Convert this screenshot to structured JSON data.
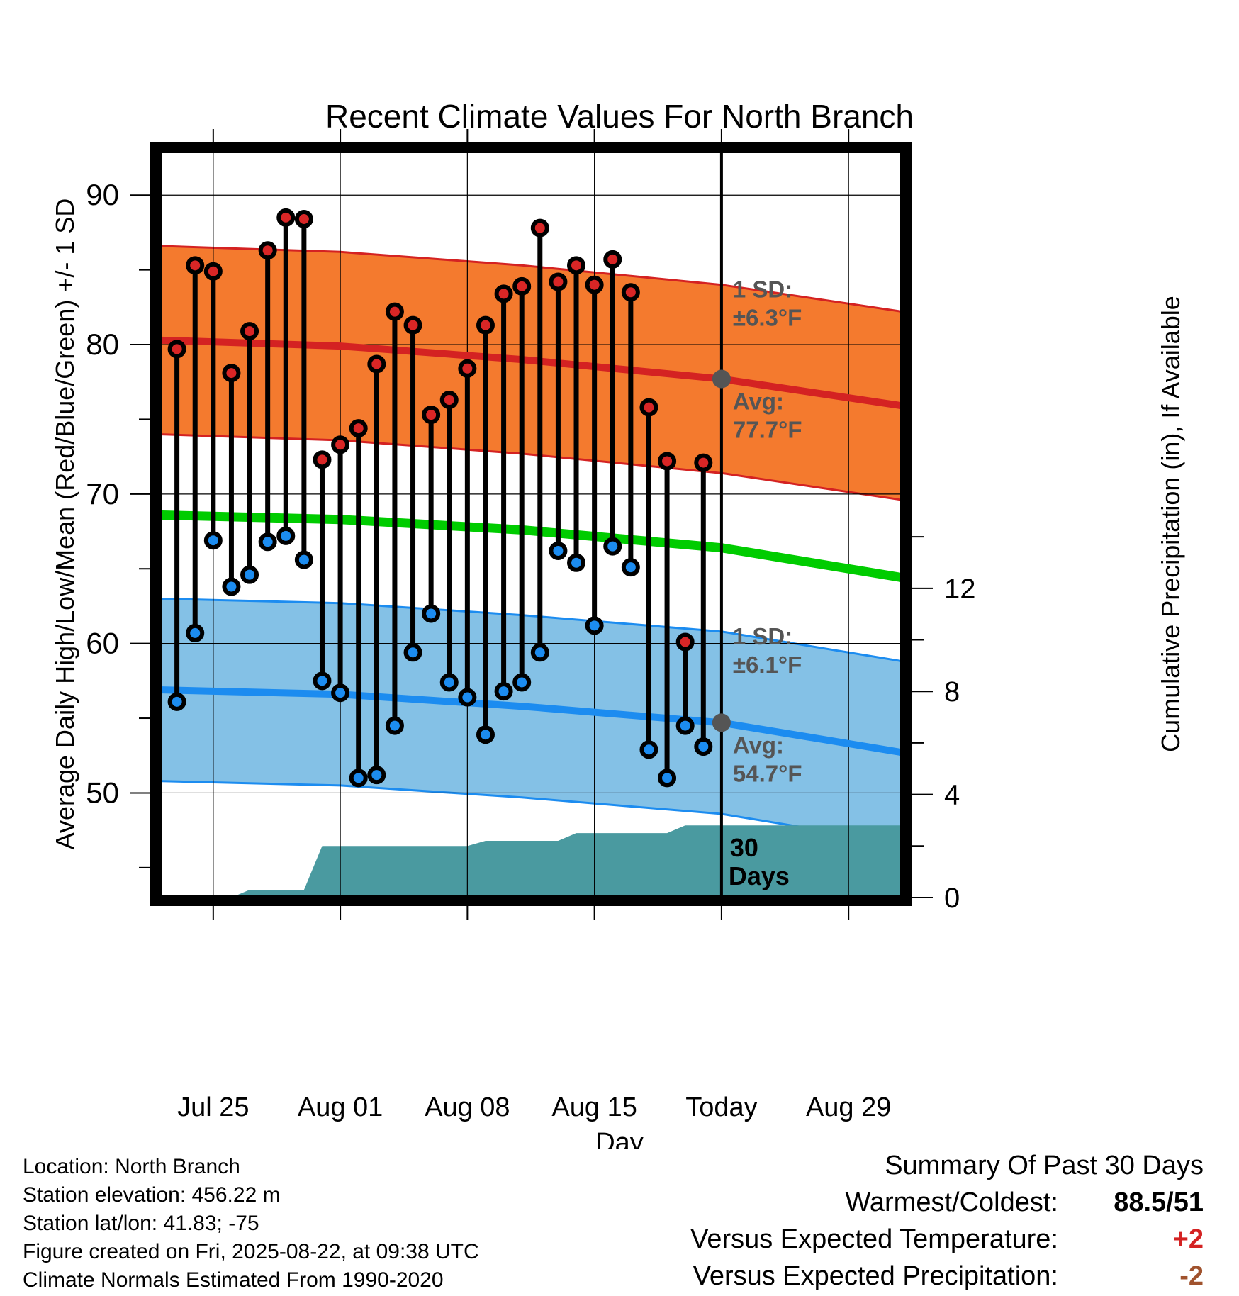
{
  "chart_data": {
    "type": "line",
    "title": "Recent Climate Values For North Branch",
    "xlabel": "Day",
    "ylabel": "Average Daily High/Low/Mean (Red/Blue/Green) +/- 1 SD",
    "ylabel_right": "Cumulative Precipitation (in), If Available",
    "x_ticks": [
      "Jul 25",
      "Aug 01",
      "Aug 08",
      "Aug 15",
      "Today",
      "Aug 29"
    ],
    "x_tick_days": [
      3,
      10,
      17,
      24,
      31,
      38
    ],
    "x_range_days": [
      0,
      41
    ],
    "ylim": [
      43,
      93
    ],
    "y_ticks": [
      50,
      60,
      70,
      80,
      90
    ],
    "y2lim": [
      0,
      29
    ],
    "y2_ticks": [
      0,
      4,
      8,
      12
    ],
    "grid": true,
    "today_day": 31,
    "daily": {
      "days": [
        1,
        2,
        3,
        4,
        5,
        6,
        7,
        8,
        9,
        10,
        11,
        12,
        13,
        14,
        15,
        16,
        17,
        18,
        19,
        20,
        21,
        22,
        23,
        24,
        25,
        26,
        27,
        28,
        29,
        30
      ],
      "high": [
        79.7,
        85.3,
        84.9,
        78.1,
        80.9,
        86.3,
        88.5,
        88.4,
        72.3,
        73.3,
        74.4,
        78.7,
        82.2,
        81.3,
        75.3,
        76.3,
        78.4,
        81.3,
        83.4,
        83.9,
        87.8,
        84.2,
        85.3,
        84.0,
        85.7,
        83.5,
        75.8,
        72.2,
        60.1,
        72.1
      ],
      "low": [
        56.1,
        60.7,
        66.9,
        63.8,
        64.6,
        66.8,
        67.2,
        65.6,
        57.5,
        56.7,
        51.0,
        51.2,
        54.5,
        59.4,
        62.0,
        57.4,
        56.4,
        53.9,
        56.8,
        57.4,
        59.4,
        66.2,
        65.4,
        61.2,
        66.5,
        65.1,
        52.9,
        51.0,
        54.5,
        53.1
      ]
    },
    "normals": {
      "days": [
        0,
        10,
        20,
        31,
        41
      ],
      "avg_high": [
        80.3,
        79.9,
        79.0,
        77.7,
        75.9
      ],
      "sd_high": 6.3,
      "avg_low": [
        56.9,
        56.6,
        55.8,
        54.7,
        52.7
      ],
      "sd_low": 6.1,
      "avg_mean": [
        68.6,
        68.3,
        67.6,
        66.4,
        64.4
      ]
    },
    "precipitation_cumulative": {
      "days": [
        0,
        4,
        5,
        8,
        9,
        17,
        18,
        22,
        23,
        28,
        29,
        41
      ],
      "values": [
        0,
        0,
        0.3,
        0.3,
        2.0,
        2.0,
        2.2,
        2.2,
        2.5,
        2.5,
        2.8,
        2.8
      ]
    },
    "annotations": {
      "high_sd_label": "1 SD:",
      "high_sd_value": "±6.3°F",
      "high_avg_label": "Avg:",
      "high_avg_value": "77.7°F",
      "low_sd_label": "1 SD:",
      "low_sd_value": "±6.1°F",
      "low_avg_label": "Avg:",
      "low_avg_value": "54.7°F",
      "days_number": "30",
      "days_word": "Days"
    },
    "colors": {
      "high_band": "#f47a2e",
      "high_line": "#d42222",
      "low_band": "#84c1e6",
      "low_line": "#1c8cf0",
      "mean_line": "#00cc00",
      "precip": "#4a9aa0",
      "high_dot": "#d92626",
      "low_dot": "#1c8cf0",
      "annotation": "#555555"
    }
  },
  "footer": {
    "location": "Location: North Branch",
    "elevation": "Station elevation: 456.22 m",
    "latlon": "Station lat/lon: 41.83; -75",
    "created": "Figure created on Fri, 2025-08-22, at 09:38 UTC",
    "normals": "Climate Normals Estimated From 1990-2020"
  },
  "summary": {
    "title": "Summary Of Past 30 Days",
    "warmest_label": "Warmest/Coldest:",
    "warmest_value": "88.5/51",
    "temp_label": "Versus Expected Temperature:",
    "temp_value": "+2",
    "temp_color": "#d42222",
    "precip_label": "Versus Expected Precipitation:",
    "precip_value": "-2",
    "precip_color": "#a0522d"
  }
}
